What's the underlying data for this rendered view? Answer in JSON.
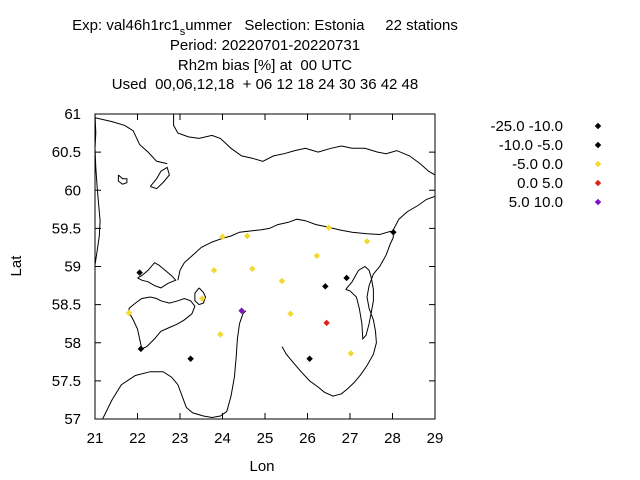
{
  "title": {
    "exp_prefix": "Exp: val46h1rc1",
    "exp_sub": "s",
    "exp_suffix": "ummer   Selection: Estonia     22 stations",
    "period": "Period: 20220701-20220731",
    "parameter": "Rh2m bias [%] at  00 UTC",
    "used": "Used  00,06,12,18  + 06 12 18 24 30 36 42 48"
  },
  "chart_data": {
    "type": "scatter",
    "xlabel": "Lon",
    "ylabel": "Lat",
    "xlim": [
      21,
      29
    ],
    "ylim": [
      57,
      61
    ],
    "xticks": [
      "21",
      "22",
      "23",
      "24",
      "25",
      "26",
      "27",
      "28",
      "29"
    ],
    "yticks": [
      "57",
      "57.5",
      "58",
      "58.5",
      "59",
      "59.5",
      "60",
      "60.5",
      "61"
    ],
    "legend_position": "right",
    "classes": [
      {
        "label": "-25.0 -10.0",
        "color": "#000000"
      },
      {
        "label": "-10.0 -5.0",
        "color": "#000000"
      },
      {
        "label": "-5.0 0.0",
        "color": "#f2d930"
      },
      {
        "label": "0.0 5.0",
        "color": "#e0221b"
      },
      {
        "label": "5.0 10.0",
        "color": "#7b13c4"
      }
    ],
    "points": [
      {
        "lon": 28.02,
        "lat": 59.45,
        "cls": 1
      },
      {
        "lon": 22.05,
        "lat": 58.92,
        "cls": 1
      },
      {
        "lon": 26.92,
        "lat": 58.85,
        "cls": 1
      },
      {
        "lon": 26.42,
        "lat": 58.74,
        "cls": 1
      },
      {
        "lon": 22.08,
        "lat": 57.92,
        "cls": 1
      },
      {
        "lon": 23.25,
        "lat": 57.79,
        "cls": 1
      },
      {
        "lon": 26.05,
        "lat": 57.79,
        "cls": 1
      },
      {
        "lon": 26.5,
        "lat": 59.51,
        "cls": 2
      },
      {
        "lon": 27.4,
        "lat": 59.33,
        "cls": 2
      },
      {
        "lon": 24.0,
        "lat": 59.39,
        "cls": 2
      },
      {
        "lon": 24.58,
        "lat": 59.4,
        "cls": 2
      },
      {
        "lon": 26.22,
        "lat": 59.14,
        "cls": 2
      },
      {
        "lon": 23.8,
        "lat": 58.95,
        "cls": 2
      },
      {
        "lon": 24.7,
        "lat": 58.97,
        "cls": 2
      },
      {
        "lon": 25.4,
        "lat": 58.81,
        "cls": 2
      },
      {
        "lon": 23.52,
        "lat": 58.58,
        "cls": 2
      },
      {
        "lon": 21.8,
        "lat": 58.39,
        "cls": 2
      },
      {
        "lon": 25.6,
        "lat": 58.38,
        "cls": 2
      },
      {
        "lon": 23.95,
        "lat": 58.11,
        "cls": 2
      },
      {
        "lon": 27.02,
        "lat": 57.86,
        "cls": 2
      },
      {
        "lon": 26.45,
        "lat": 58.26,
        "cls": 3
      },
      {
        "lon": 24.45,
        "lat": 58.42,
        "cls": 4
      }
    ],
    "coastlines": [
      [
        [
          21.0,
          59.02
        ],
        [
          21.05,
          59.2
        ],
        [
          21.1,
          59.4
        ],
        [
          21.12,
          59.6
        ],
        [
          21.08,
          59.85
        ],
        [
          21.05,
          60.05
        ],
        [
          21.02,
          60.3
        ],
        [
          21.0,
          60.55
        ],
        [
          21.02,
          60.75
        ],
        [
          21.0,
          61.0
        ]
      ],
      [
        [
          21.0,
          57.0
        ],
        [
          21.18,
          57.0
        ],
        [
          21.4,
          57.25
        ],
        [
          21.62,
          57.45
        ],
        [
          21.95,
          57.57
        ],
        [
          22.3,
          57.62
        ],
        [
          22.6,
          57.62
        ],
        [
          22.8,
          57.55
        ],
        [
          22.95,
          57.45
        ],
        [
          23.05,
          57.3
        ],
        [
          23.15,
          57.15
        ],
        [
          23.3,
          57.08
        ],
        [
          23.55,
          57.04
        ],
        [
          23.75,
          57.02
        ],
        [
          23.95,
          57.04
        ],
        [
          24.1,
          57.1
        ],
        [
          24.2,
          57.3
        ],
        [
          24.28,
          57.55
        ],
        [
          24.32,
          57.8
        ],
        [
          24.35,
          58.05
        ],
        [
          24.4,
          58.25
        ],
        [
          24.48,
          58.38
        ],
        [
          24.55,
          58.42
        ]
      ],
      [
        [
          22.0,
          58.85
        ],
        [
          22.1,
          58.88
        ],
        [
          22.25,
          58.95
        ],
        [
          22.4,
          59.05
        ],
        [
          22.5,
          59.02
        ],
        [
          22.65,
          58.95
        ],
        [
          22.8,
          58.88
        ],
        [
          22.9,
          58.82
        ],
        [
          22.72,
          58.78
        ],
        [
          22.55,
          58.72
        ],
        [
          22.4,
          58.75
        ],
        [
          22.25,
          58.8
        ],
        [
          22.1,
          58.82
        ],
        [
          22.0,
          58.85
        ]
      ],
      [
        [
          21.8,
          58.45
        ],
        [
          21.95,
          58.52
        ],
        [
          22.1,
          58.58
        ],
        [
          22.3,
          58.6
        ],
        [
          22.45,
          58.58
        ],
        [
          22.55,
          58.55
        ],
        [
          22.75,
          58.52
        ],
        [
          22.95,
          58.55
        ],
        [
          23.1,
          58.58
        ],
        [
          23.25,
          58.55
        ],
        [
          23.35,
          58.48
        ],
        [
          23.28,
          58.38
        ],
        [
          23.1,
          58.3
        ],
        [
          22.92,
          58.24
        ],
        [
          22.75,
          58.2
        ],
        [
          22.55,
          58.15
        ],
        [
          22.4,
          58.05
        ],
        [
          22.22,
          57.95
        ],
        [
          22.1,
          57.92
        ],
        [
          22.05,
          58.05
        ],
        [
          22.0,
          58.18
        ],
        [
          21.9,
          58.3
        ],
        [
          21.8,
          58.4
        ],
        [
          21.8,
          58.45
        ]
      ],
      [
        [
          23.45,
          58.72
        ],
        [
          23.55,
          58.66
        ],
        [
          23.6,
          58.6
        ],
        [
          23.55,
          58.52
        ],
        [
          23.45,
          58.5
        ],
        [
          23.35,
          58.55
        ],
        [
          23.35,
          58.65
        ],
        [
          23.45,
          58.72
        ]
      ],
      [
        [
          23.1,
          59.05
        ],
        [
          23.3,
          59.15
        ],
        [
          23.5,
          59.25
        ],
        [
          23.75,
          59.32
        ],
        [
          24.0,
          59.37
        ],
        [
          24.2,
          59.4
        ],
        [
          24.4,
          59.45
        ],
        [
          24.7,
          59.47
        ],
        [
          24.9,
          59.48
        ],
        [
          25.1,
          59.5
        ],
        [
          25.3,
          59.55
        ],
        [
          25.55,
          59.58
        ],
        [
          25.75,
          59.62
        ],
        [
          25.95,
          59.6
        ],
        [
          26.2,
          59.55
        ],
        [
          26.45,
          59.52
        ],
        [
          26.75,
          59.48
        ],
        [
          27.05,
          59.45
        ],
        [
          27.4,
          59.43
        ],
        [
          27.7,
          59.42
        ],
        [
          27.95,
          59.46
        ],
        [
          28.02,
          59.45
        ],
        [
          28.02,
          59.38
        ],
        [
          27.95,
          59.3
        ],
        [
          27.85,
          59.15
        ],
        [
          27.7,
          59.0
        ],
        [
          27.55,
          58.9
        ],
        [
          27.45,
          58.75
        ],
        [
          27.4,
          58.6
        ],
        [
          27.45,
          58.45
        ],
        [
          27.55,
          58.3
        ],
        [
          27.6,
          58.15
        ],
        [
          27.62,
          58.0
        ],
        [
          27.55,
          57.85
        ],
        [
          27.4,
          57.7
        ],
        [
          27.25,
          57.58
        ],
        [
          27.1,
          57.48
        ],
        [
          26.95,
          57.4
        ],
        [
          26.8,
          57.33
        ],
        [
          26.6,
          57.3
        ],
        [
          26.4,
          57.35
        ],
        [
          26.25,
          57.42
        ],
        [
          26.05,
          57.5
        ],
        [
          25.85,
          57.62
        ],
        [
          25.65,
          57.75
        ],
        [
          25.5,
          57.85
        ],
        [
          25.4,
          57.95
        ]
      ],
      [
        [
          23.1,
          59.05
        ],
        [
          23.0,
          58.95
        ],
        [
          22.95,
          58.82
        ]
      ],
      [
        [
          26.9,
          58.7
        ],
        [
          27.05,
          58.8
        ],
        [
          27.2,
          58.95
        ],
        [
          27.35,
          59.0
        ],
        [
          27.45,
          58.95
        ],
        [
          27.5,
          58.85
        ],
        [
          27.55,
          58.7
        ],
        [
          27.55,
          58.55
        ],
        [
          27.5,
          58.4
        ],
        [
          27.45,
          58.25
        ],
        [
          27.38,
          58.1
        ],
        [
          27.3,
          58.05
        ],
        [
          27.28,
          58.25
        ],
        [
          27.22,
          58.45
        ],
        [
          27.15,
          58.6
        ],
        [
          27.0,
          58.68
        ],
        [
          26.9,
          58.7
        ]
      ],
      [
        [
          22.85,
          61.0
        ],
        [
          22.85,
          60.85
        ],
        [
          22.95,
          60.75
        ],
        [
          23.2,
          60.7
        ],
        [
          23.45,
          60.68
        ],
        [
          23.75,
          60.72
        ],
        [
          23.95,
          60.68
        ],
        [
          24.2,
          60.55
        ],
        [
          24.45,
          60.45
        ],
        [
          24.7,
          60.42
        ],
        [
          24.95,
          60.38
        ],
        [
          25.2,
          60.45
        ],
        [
          25.45,
          60.48
        ],
        [
          25.7,
          60.52
        ],
        [
          25.95,
          60.55
        ],
        [
          26.25,
          60.5
        ],
        [
          26.55,
          60.55
        ],
        [
          26.8,
          60.58
        ],
        [
          27.05,
          60.55
        ],
        [
          27.35,
          60.55
        ],
        [
          27.65,
          60.5
        ],
        [
          27.85,
          60.48
        ],
        [
          28.1,
          60.52
        ],
        [
          28.4,
          60.45
        ],
        [
          28.65,
          60.35
        ],
        [
          28.85,
          60.25
        ],
        [
          29.0,
          60.2
        ]
      ],
      [
        [
          28.0,
          59.46
        ],
        [
          28.15,
          59.62
        ],
        [
          28.35,
          59.72
        ],
        [
          28.6,
          59.8
        ],
        [
          28.8,
          59.88
        ],
        [
          29.0,
          59.92
        ]
      ],
      [
        [
          21.0,
          60.95
        ],
        [
          21.4,
          60.9
        ],
        [
          21.7,
          60.85
        ],
        [
          21.9,
          60.78
        ],
        [
          22.05,
          60.6
        ],
        [
          22.25,
          60.5
        ],
        [
          22.45,
          60.38
        ],
        [
          22.7,
          60.35
        ]
      ],
      [
        [
          21.55,
          60.2
        ],
        [
          21.65,
          60.15
        ],
        [
          21.75,
          60.15
        ],
        [
          21.75,
          60.1
        ],
        [
          21.65,
          60.08
        ],
        [
          21.55,
          60.12
        ],
        [
          21.55,
          60.2
        ]
      ],
      [
        [
          22.3,
          60.05
        ],
        [
          22.45,
          60.15
        ],
        [
          22.55,
          60.25
        ],
        [
          22.7,
          60.3
        ],
        [
          22.75,
          60.2
        ],
        [
          22.6,
          60.1
        ],
        [
          22.45,
          60.02
        ],
        [
          22.3,
          60.05
        ]
      ]
    ]
  }
}
